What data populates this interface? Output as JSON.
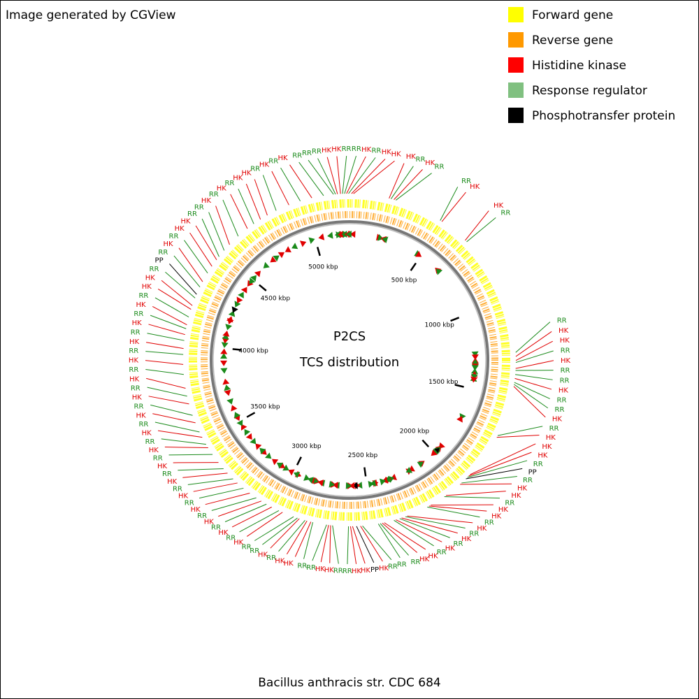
{
  "chart_data": {
    "type": "circular-genome",
    "credit": "Image generated by CGView",
    "center_title": "P2CS",
    "center_subtitle": "TCS distribution",
    "title": "Bacillus anthracis str. CDC 684",
    "xlim": [
      0,
      5230
    ],
    "xticks": [
      {
        "value": 500,
        "label": "500 kbp"
      },
      {
        "value": 1000,
        "label": "1000 kbp"
      },
      {
        "value": 1500,
        "label": "1500 kbp"
      },
      {
        "value": 2000,
        "label": "2000 kbp"
      },
      {
        "value": 2500,
        "label": "2500 kbp"
      },
      {
        "value": 3000,
        "label": "3000 kbp"
      },
      {
        "value": 3500,
        "label": "3500 kbp"
      },
      {
        "value": 4000,
        "label": "4000 kbp"
      },
      {
        "value": 4500,
        "label": "4500 kbp"
      },
      {
        "value": 5000,
        "label": "5000 kbp"
      }
    ],
    "tracks": [
      {
        "name": "Forward gene",
        "color": "#ffff00"
      },
      {
        "name": "Reverse gene",
        "color": "#ff9900"
      }
    ],
    "series": [
      {
        "name": "Histidine kinase",
        "color": "#ff0000",
        "label_color": "#e00000",
        "label": "HK",
        "x": [
          5170,
          5185,
          5215,
          10,
          20,
          200,
          225,
          490,
          640,
          1290,
          1310,
          1350,
          1400,
          1440,
          1710,
          1940,
          1950,
          2010,
          2100,
          2190,
          2200,
          2320,
          2350,
          2380,
          2440,
          2450,
          2560,
          2600,
          2610,
          2710,
          2720,
          2810,
          2830,
          2870,
          2960,
          3020,
          3080,
          3150,
          3230,
          3300,
          3370,
          3460,
          3520,
          3600,
          3700,
          3780,
          3900,
          3980,
          4050,
          4100,
          4180,
          4200,
          4330,
          4420,
          4460,
          4560,
          4680,
          4760,
          4800,
          4920,
          5040
        ]
      },
      {
        "name": "Response regulator",
        "color": "#80c080",
        "label_color": "#1a8a1a",
        "label": "RR",
        "x": [
          5150,
          5160,
          5195,
          5205,
          5225,
          210,
          235,
          480,
          650,
          1270,
          1320,
          1360,
          1380,
          1420,
          1430,
          1700,
          1960,
          2000,
          2110,
          2210,
          2330,
          2360,
          2390,
          2460,
          2470,
          2550,
          2620,
          2700,
          2730,
          2800,
          2840,
          2880,
          2900,
          2980,
          3050,
          3110,
          3190,
          3260,
          3330,
          3420,
          3480,
          3550,
          3640,
          3740,
          3850,
          3950,
          4020,
          4080,
          4140,
          4240,
          4300,
          4380,
          4480,
          4520,
          4620,
          4720,
          4850,
          4980,
          5100
        ]
      },
      {
        "name": "Phosphotransfer protein",
        "color": "#000000",
        "label_color": "#000000",
        "label": "PP",
        "x": [
          1970,
          2580,
          4260
        ]
      }
    ]
  }
}
